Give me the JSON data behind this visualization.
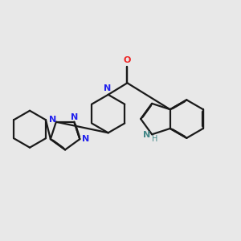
{
  "background_color": "#e8e8e8",
  "bond_color": "#1a1a1a",
  "N_color": "#2222ee",
  "O_color": "#ee2222",
  "NH_color": "#448888",
  "line_width": 1.6,
  "dbo": 0.012,
  "figsize": [
    3.0,
    3.0
  ],
  "dpi": 100,
  "xlim": [
    -3.8,
    4.0
  ],
  "ylim": [
    -2.5,
    2.5
  ]
}
